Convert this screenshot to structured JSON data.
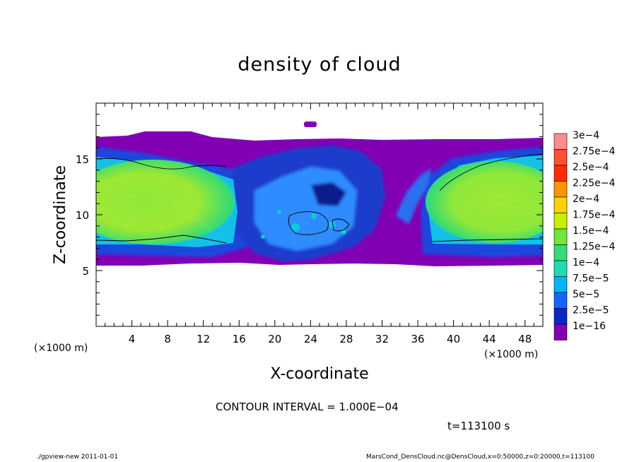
{
  "chart_data": {
    "type": "heatmap",
    "title": "density of cloud",
    "xlabel": "X-coordinate",
    "ylabel": "Z-coordinate",
    "x_unit": "(×1000 m)",
    "y_unit": "(×1000 m)",
    "xlim": [
      0,
      50
    ],
    "ylim": [
      0,
      20
    ],
    "x_ticks": [
      4,
      8,
      12,
      16,
      20,
      24,
      28,
      32,
      36,
      40,
      44,
      48
    ],
    "y_ticks": [
      5,
      10,
      15
    ],
    "colorbar": {
      "labels": [
        "3e−4",
        "2.75e−4",
        "2.5e−4",
        "2.25e−4",
        "2e−4",
        "1.75e−4",
        "1.5e−4",
        "1.25e−4",
        "1e−4",
        "7.5e−5",
        "5e−5",
        "2.5e−5",
        "1e−16"
      ],
      "colors": [
        "#ff8c8c",
        "#ff5032",
        "#ff2d00",
        "#ff9600",
        "#ffd200",
        "#c8f000",
        "#6ee63c",
        "#32dc78",
        "#1edcb4",
        "#00b4ff",
        "#1464ff",
        "#0a28c8",
        "#8200b4"
      ]
    },
    "contour_interval": "CONTOUR INTERVAL = 1.000E−04",
    "time_label": "t=113100 s"
  },
  "footer": {
    "left": "./gpview-new  2011-01-01",
    "right": "MarsCond_DensCloud.nc@DensCloud,x=0:50000,z=0:20000,t=113100"
  }
}
